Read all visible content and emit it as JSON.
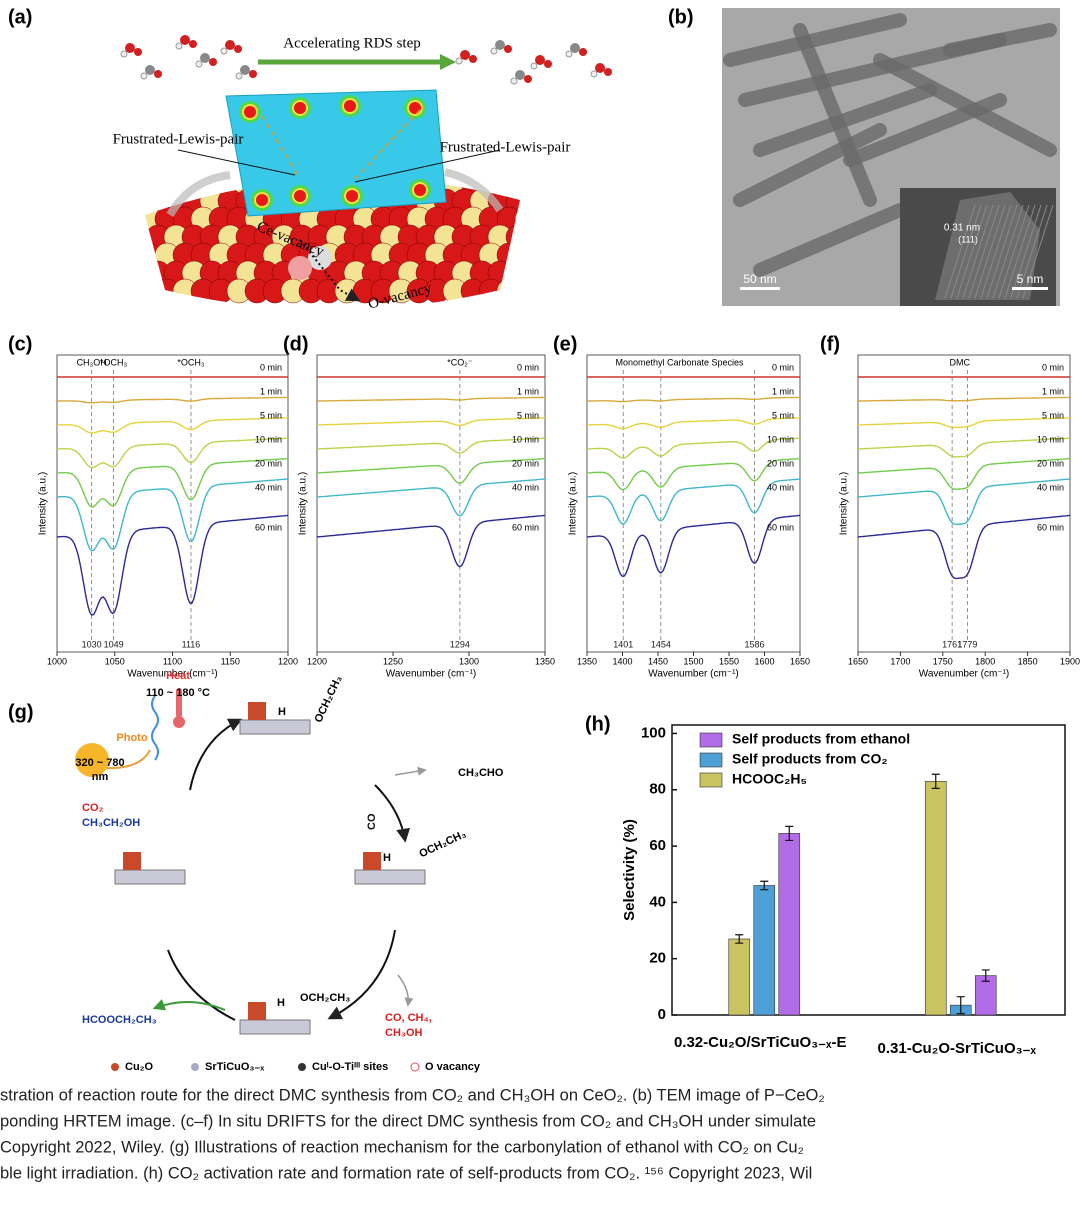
{
  "panel_labels": [
    "(a)",
    "(b)",
    "(c)",
    "(d)",
    "(e)",
    "(f)",
    "(g)",
    "(h)"
  ],
  "scheme_a": {
    "arrow_label": "Accelerating RDS step",
    "flp_left": "Frustrated-Lewis-pair",
    "flp_right": "Frustrated-Lewis-pair",
    "ce_vacancy": "Ce-vacancy",
    "o_vacancy": "O-vacancy"
  },
  "tem_b": {
    "scale_main": "50 nm",
    "lattice": "0.31 nm",
    "plane": "(111)",
    "scale_inset": "5 nm"
  },
  "spectra": {
    "curve_colors": [
      "#d0342c",
      "#d8a93c",
      "#e6d33c",
      "#b8d64a",
      "#72cc48",
      "#40b7c9",
      "#2b2a93"
    ],
    "panels": [
      {
        "xlim": [
          1000,
          1200
        ],
        "xticks": [
          1000,
          1050,
          1100,
          1150,
          1200
        ],
        "ylabel": "Intensity (a.u.)",
        "xlabel": "Wavenumber (cm⁻¹)",
        "top_labels": [
          "CH₃OH",
          "*OCH₃",
          "*OCH₃"
        ],
        "peaks": [
          1030,
          1049,
          1116
        ],
        "times": [
          "0 min",
          "1 min",
          "5 min",
          "10 min",
          "20 min",
          "40 min",
          "60 min"
        ]
      },
      {
        "xlim": [
          1200,
          1350
        ],
        "xticks": [
          1200,
          1250,
          1300,
          1350
        ],
        "ylabel": "Intensity (a.u.)",
        "xlabel": "Wavenumber (cm⁻¹)",
        "top_labels": [
          "*CO₂⁻"
        ],
        "peaks": [
          1294
        ],
        "times": [
          "0 min",
          "1 min",
          "5 min",
          "10 min",
          "20 min",
          "40 min",
          "60 min"
        ]
      },
      {
        "xlim": [
          1350,
          1650
        ],
        "xticks": [
          1350,
          1400,
          1450,
          1500,
          1550,
          1600,
          1650
        ],
        "ylabel": "Intensity (a.u.)",
        "xlabel": "Wavenumber (cm⁻¹)",
        "top_labels": [
          "Monomethyl Carbonate Species"
        ],
        "peaks": [
          1401,
          1454,
          1586
        ],
        "times": [
          "0 min",
          "1 min",
          "5 min",
          "10 min",
          "20 min",
          "40 min",
          "60 min"
        ]
      },
      {
        "xlim": [
          1650,
          1900
        ],
        "xticks": [
          1650,
          1700,
          1750,
          1800,
          1850,
          1900
        ],
        "ylabel": "Intensity (a.u.)",
        "xlabel": "Wavenumber (cm⁻¹)",
        "top_labels": [
          "DMC"
        ],
        "peaks": [
          1761,
          1779
        ],
        "times": [
          "0 min",
          "1 min",
          "5 min",
          "10 min",
          "20 min",
          "40 min",
          "60 min"
        ]
      }
    ]
  },
  "scheme_g": {
    "heat": "Heat",
    "temp": "110 ~ 180 °C",
    "photo": "Photo",
    "wave": "320 ~ 780",
    "wave_unit": "nm",
    "co2": "CO₂",
    "ethanol": "CH₃CH₂OH",
    "acetaldehyde": "CH₃CHO",
    "co": "CO",
    "ethoxy_top": "OCH₂CH₃",
    "ethoxy_right": "OCH₂CH₃",
    "ethoxy_bottom": "OCH₂CH₃",
    "h_top": "H",
    "h_right": "H",
    "h_bottom": "H",
    "product": "HCOOCH₂CH₃",
    "byproducts": "CO, CH₄,",
    "byproduct_methanol": "CH₃OH",
    "legend": [
      "Cu₂O",
      "SrTiCuO₃₋ₓ",
      "Cuᴵ-O-Tiᴵᴵᴵ sites",
      "O vacancy"
    ]
  },
  "chart_data": {
    "type": "bar",
    "ylabel": "Selectivity (%)",
    "categories": [
      "0.32-Cu₂O/SrTiCuO₃₋ₓ-E",
      "0.31-Cu₂O-SrTiCuO₃₋ₓ"
    ],
    "series": [
      {
        "name": "HCOOC₂H₅",
        "color": "#c9c362",
        "values": [
          27,
          83
        ],
        "error": [
          1.5,
          2.5
        ]
      },
      {
        "name": "Self products from CO₂",
        "color": "#4d9fd6",
        "values": [
          46,
          3.5
        ],
        "error": [
          1.5,
          3
        ]
      },
      {
        "name": "Self products from ethanol",
        "color": "#b26ce8",
        "values": [
          64.5,
          14
        ],
        "error": [
          2.5,
          2
        ]
      }
    ],
    "ylim": [
      0,
      103
    ],
    "yticks": [
      0,
      20,
      40,
      60,
      80,
      100
    ]
  },
  "caption": [
    "stration of reaction route for the direct DMC synthesis from CO₂ and CH₃OH on CeO₂. (b) TEM image of P−CeO₂",
    "ponding HRTEM image. (c–f) In situ DRIFTS for the direct DMC synthesis from CO₂ and CH₃OH under simulate",
    "Copyright 2022, Wiley. (g) Illustrations of reaction mechanism for the carbonylation of ethanol with CO₂ on Cu₂",
    "ble light irradiation. (h) CO₂ activation rate and formation rate of self-products from CO₂. ¹⁵⁶ Copyright 2023, Wil"
  ]
}
